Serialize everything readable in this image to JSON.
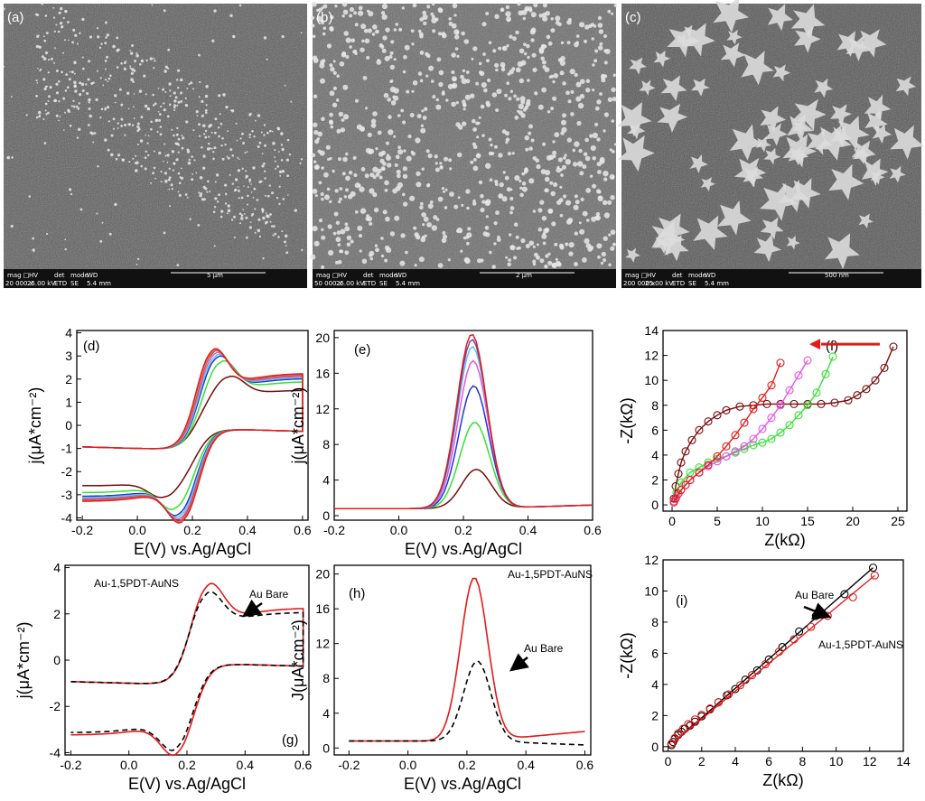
{
  "sem_panels": [
    {
      "label": "(a)",
      "footer": [
        "mag □",
        "HV",
        "det",
        "mode",
        "WD"
      ],
      "footer2": [
        "20 000 x",
        "25.00 kV",
        "ETD",
        "SE",
        "5.4 mm"
      ],
      "scale": "5 µm"
    },
    {
      "label": "(b)",
      "footer": [
        "mag □",
        "HV",
        "det",
        "mode",
        "WD"
      ],
      "footer2": [
        "50 000 x",
        "25.00 kV",
        "ETD",
        "SE",
        "5.4 mm"
      ],
      "scale": "2 µm"
    },
    {
      "label": "(c)",
      "footer": [
        "mag □",
        "HV",
        "det",
        "mode",
        "WD"
      ],
      "footer2": [
        "200 000 x",
        "25.00 kV",
        "ETD",
        "SE",
        "5.4 mm"
      ],
      "scale": "500 nm"
    }
  ],
  "colors": {
    "red": "#e41a1a",
    "orange": "#f28c1e",
    "purple": "#7a3fb0",
    "blue": "#1f35d8",
    "cyan": "#5bc7e0",
    "green": "#34e034",
    "magenta": "#e653e6",
    "maroon": "#7a0a0a",
    "pink": "#e6609a",
    "black": "#000000"
  },
  "chart_data": [
    {
      "panel": "(d)",
      "type": "line",
      "xlabel": "E(V) vs.Ag/AgCl",
      "ylabel": "j(μA*cm⁻²)",
      "xlim": [
        -0.22,
        0.62
      ],
      "ylim": [
        -4.1,
        4.1
      ],
      "xticks": [
        -0.2,
        0.0,
        0.2,
        0.4,
        0.6
      ],
      "yticks": [
        -4,
        -3,
        -2,
        -1,
        0,
        1,
        2,
        3,
        4
      ],
      "series": [
        {
          "color": "maroon",
          "ipa": 2.6,
          "ipc": -2.65,
          "epa": 0.33,
          "epc": 0.1
        },
        {
          "color": "green",
          "ipa": 3.3,
          "ipc": -3.2,
          "epa": 0.3,
          "epc": 0.14
        },
        {
          "color": "blue",
          "ipa": 3.55,
          "ipc": -3.5,
          "epa": 0.285,
          "epc": 0.155
        },
        {
          "color": "cyan",
          "ipa": 3.65,
          "ipc": -3.6,
          "epa": 0.28,
          "epc": 0.16
        },
        {
          "color": "pink",
          "ipa": 3.75,
          "ipc": -3.7,
          "epa": 0.275,
          "epc": 0.165
        },
        {
          "color": "purple",
          "ipa": 3.85,
          "ipc": -3.8,
          "epa": 0.27,
          "epc": 0.168
        },
        {
          "color": "orange",
          "ipa": 3.9,
          "ipc": -3.85,
          "epa": 0.268,
          "epc": 0.17
        },
        {
          "color": "red",
          "ipa": 3.95,
          "ipc": -3.9,
          "epa": 0.265,
          "epc": 0.172
        }
      ]
    },
    {
      "panel": "(e)",
      "type": "line",
      "xlabel": "E(V) vs.Ag/AgCl",
      "ylabel": "j(μA*cm⁻²)",
      "xlim": [
        -0.2,
        0.6
      ],
      "ylim": [
        -0.5,
        20.8
      ],
      "xticks": [
        -0.2,
        0.0,
        0.2,
        0.4,
        0.6
      ],
      "yticks": [
        0,
        4,
        8,
        12,
        16,
        20
      ],
      "series": [
        {
          "color": "maroon",
          "peak": 5.2,
          "center": 0.24
        },
        {
          "color": "green",
          "peak": 10.5,
          "center": 0.235
        },
        {
          "color": "blue",
          "peak": 14.6,
          "center": 0.232
        },
        {
          "color": "magenta",
          "peak": 17.4,
          "center": 0.23
        },
        {
          "color": "cyan",
          "peak": 19.0,
          "center": 0.228
        },
        {
          "color": "purple",
          "peak": 19.8,
          "center": 0.227
        },
        {
          "color": "red",
          "peak": 20.4,
          "center": 0.226
        }
      ]
    },
    {
      "panel": "(f)",
      "type": "scatter",
      "xlabel": "Z(kΩ)",
      "ylabel": "-Z(kΩ)",
      "xlim": [
        -1,
        26
      ],
      "ylim": [
        -0.5,
        14
      ],
      "xticks": [
        0,
        5,
        10,
        15,
        20,
        25
      ],
      "yticks": [
        0,
        2,
        4,
        6,
        8,
        10,
        12,
        14
      ],
      "series": [
        {
          "color": "maroon",
          "x": [
            0.2,
            0.4,
            0.7,
            1.0,
            1.5,
            2.2,
            3.0,
            4.0,
            5.0,
            6.0,
            7.5,
            9.0,
            10.5,
            12.0,
            13.5,
            15.0,
            16.5,
            18.0,
            19.5,
            20.5,
            21.5,
            22.5,
            23.5,
            24.5
          ],
          "y": [
            0.5,
            1.5,
            2.5,
            3.4,
            4.3,
            5.2,
            6.0,
            6.7,
            7.2,
            7.6,
            7.9,
            8.0,
            8.1,
            8.1,
            8.1,
            8.1,
            8.1,
            8.2,
            8.4,
            8.8,
            9.3,
            10.0,
            11.0,
            12.7
          ]
        },
        {
          "color": "green",
          "x": [
            0.2,
            0.5,
            1.0,
            2.0,
            3.0,
            4.0,
            5.0,
            6.0,
            7.0,
            8.0,
            9.0,
            10.0,
            11.0,
            12.0,
            13.0,
            14.0,
            15.0,
            16.0,
            17.0,
            17.8
          ],
          "y": [
            0.3,
            1.0,
            1.8,
            2.6,
            3.0,
            3.4,
            3.7,
            3.9,
            4.2,
            4.5,
            4.8,
            5.0,
            5.3,
            5.8,
            6.4,
            7.2,
            8.0,
            9.0,
            10.5,
            11.9
          ]
        },
        {
          "color": "magenta",
          "x": [
            0.2,
            0.5,
            1.0,
            1.5,
            2.0,
            3.0,
            4.0,
            5.0,
            6.0,
            7.0,
            8.0,
            9.0,
            10.0,
            11.0,
            12.0,
            13.0,
            14.0,
            15.0
          ],
          "y": [
            0.3,
            0.7,
            1.2,
            1.6,
            2.0,
            2.6,
            3.1,
            3.5,
            3.9,
            4.3,
            4.7,
            5.3,
            6.1,
            7.0,
            8.0,
            9.2,
            10.4,
            11.6
          ]
        },
        {
          "color": "red",
          "x": [
            0.2,
            0.4,
            0.7,
            1.0,
            1.5,
            2.0,
            3.0,
            4.0,
            5.0,
            6.0,
            7.0,
            8.0,
            9.0,
            10.0,
            11.0,
            12.0
          ],
          "y": [
            0.2,
            0.5,
            0.9,
            1.2,
            1.6,
            2.0,
            2.6,
            3.2,
            3.9,
            4.7,
            5.6,
            6.6,
            7.7,
            8.6,
            9.6,
            11.4
          ]
        }
      ],
      "annotations": [
        {
          "type": "arrow",
          "color": "red",
          "direction": "left"
        }
      ]
    },
    {
      "panel": "(g)",
      "type": "line",
      "xlabel": "E(V) vs.Ag/AgCl",
      "ylabel": "j(μA*cm⁻²)",
      "xlim": [
        -0.22,
        0.62
      ],
      "ylim": [
        -4.1,
        4.1
      ],
      "xticks": [
        -0.2,
        0.0,
        0.2,
        0.4,
        0.6
      ],
      "yticks": [
        -4,
        -2,
        0,
        2,
        4
      ],
      "series": [
        {
          "name": "Au-1,5PDT-AuNS",
          "color": "red",
          "style": "solid",
          "ipa": 3.95,
          "ipc": -3.8,
          "epa": 0.265,
          "epc": 0.172
        },
        {
          "name": "Au Bare",
          "color": "black",
          "style": "dashed",
          "ipa": 3.6,
          "ipc": -3.6,
          "epa": 0.26,
          "epc": 0.17
        }
      ],
      "annotations": [
        "Au-1,5PDT-AuNS",
        "Au Bare"
      ]
    },
    {
      "panel": "(h)",
      "type": "line",
      "xlabel": "E(V) vs.Ag/AgCl",
      "ylabel": "J(μA*cm⁻²)",
      "xlim": [
        -0.25,
        0.62
      ],
      "ylim": [
        -0.8,
        21
      ],
      "xticks": [
        -0.2,
        0.0,
        0.2,
        0.4,
        0.6
      ],
      "yticks": [
        0,
        4,
        8,
        12,
        16,
        20
      ],
      "series": [
        {
          "name": "Au-1,5PDT-AuNS",
          "color": "red",
          "style": "solid",
          "peak": 19.6,
          "center": 0.225,
          "tail": 1.9
        },
        {
          "name": "Au Bare",
          "color": "black",
          "style": "dashed",
          "peak": 10.0,
          "center": 0.235,
          "tail": 0.35
        }
      ],
      "annotations": [
        "Au-1,5PDT-AuNS",
        "Au Bare"
      ]
    },
    {
      "panel": "(i)",
      "type": "scatter",
      "xlabel": "Z(kΩ)",
      "ylabel": "-Z(kΩ)",
      "xlim": [
        -0.3,
        14
      ],
      "ylim": [
        -0.3,
        12
      ],
      "xticks": [
        0,
        2,
        4,
        6,
        8,
        10,
        12,
        14
      ],
      "yticks": [
        0,
        2,
        4,
        6,
        8,
        10,
        12
      ],
      "xtick_labels": [
        "0",
        "2",
        "4",
        "6",
        "8",
        "10",
        "12",
        "14"
      ],
      "series": [
        {
          "name": "Au Bare",
          "color": "black",
          "x": [
            0.2,
            0.3,
            0.4,
            0.6,
            0.8,
            1.0,
            1.3,
            1.6,
            2.0,
            2.5,
            3.0,
            3.5,
            4.0,
            4.6,
            5.3,
            6.0,
            6.8,
            7.8,
            8.8,
            10.5,
            12.2
          ],
          "y": [
            0.1,
            0.3,
            0.5,
            0.75,
            0.95,
            1.15,
            1.35,
            1.6,
            1.95,
            2.4,
            2.85,
            3.3,
            3.7,
            4.3,
            4.9,
            5.6,
            6.4,
            7.4,
            8.4,
            9.8,
            11.5
          ]
        },
        {
          "name": "Au-1,5PDT-AuNS",
          "color": "red",
          "x": [
            0.2,
            0.4,
            0.6,
            0.9,
            1.2,
            1.6,
            2.0,
            2.5,
            3.0,
            3.6,
            4.3,
            5.0,
            5.8,
            6.6,
            7.5,
            8.5,
            9.5,
            11.0,
            12.3
          ],
          "y": [
            0.2,
            0.55,
            0.85,
            1.15,
            1.45,
            1.75,
            2.05,
            2.45,
            2.85,
            3.35,
            3.95,
            4.6,
            5.3,
            6.1,
            6.9,
            7.7,
            8.4,
            9.6,
            11.0
          ]
        }
      ],
      "annotations": [
        "Au Bare",
        "Au-1,5PDT-AuNS"
      ]
    }
  ]
}
